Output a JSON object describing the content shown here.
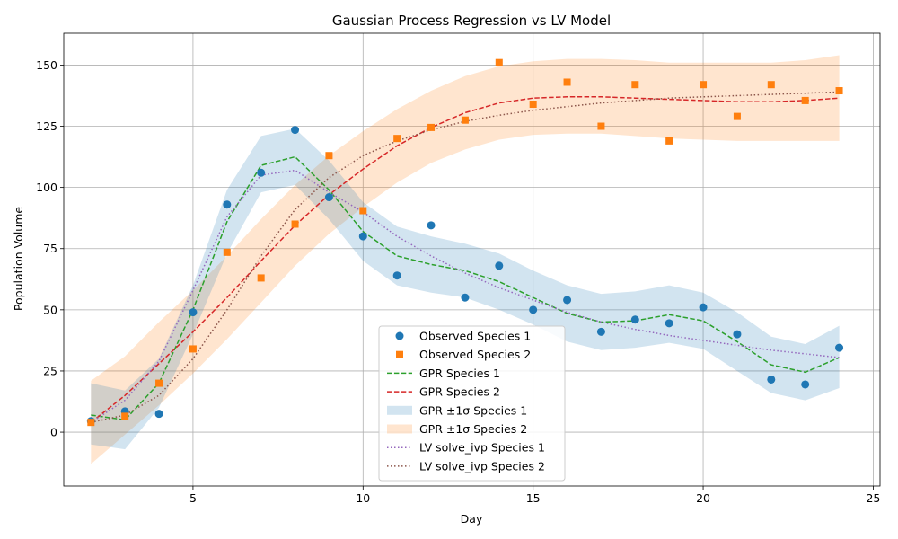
{
  "chart_data": {
    "type": "line",
    "title": "Gaussian Process Regression vs LV Model",
    "xlabel": "Day",
    "ylabel": "Population Volume",
    "xlim": [
      1.2,
      25.2
    ],
    "ylim": [
      -22,
      163
    ],
    "xticks": [
      5,
      10,
      15,
      20,
      25
    ],
    "yticks": [
      0,
      25,
      50,
      75,
      100,
      125,
      150
    ],
    "grid": true,
    "legend_position": "lower-center",
    "x": [
      2,
      3,
      4,
      5,
      6,
      7,
      8,
      9,
      10,
      11,
      12,
      13,
      14,
      15,
      16,
      17,
      18,
      19,
      20,
      21,
      22,
      23,
      24
    ],
    "observed_species_1": {
      "name": "Observed Species 1",
      "color": "#1f77b4",
      "marker": "circle",
      "y": [
        4.5,
        8.5,
        7.5,
        49,
        93,
        106,
        123.5,
        96,
        80,
        64,
        84.5,
        55,
        68,
        50,
        54,
        41,
        46,
        44.5,
        51,
        40,
        21.5,
        19.5,
        34.5
      ]
    },
    "observed_species_2": {
      "name": "Observed Species 2",
      "color": "#ff7f0e",
      "marker": "square",
      "y": [
        4,
        6.5,
        20,
        34,
        73.5,
        63,
        85,
        113,
        90.5,
        120,
        124.5,
        127.5,
        151,
        134,
        143,
        125,
        142,
        119,
        142,
        129,
        142,
        135.5,
        139.5
      ]
    },
    "gpr_species_1": {
      "name": "GPR Species 1",
      "color": "#2ca02c",
      "style": "dashed",
      "y": [
        7,
        5,
        20,
        50,
        86,
        109,
        112.5,
        99,
        82,
        72,
        68.5,
        66,
        61.5,
        55,
        48.5,
        45,
        45.5,
        48,
        45.5,
        37,
        27.5,
        24.5,
        30.5
      ],
      "sigma_label": "GPR ±1σ Species 1",
      "sigma_color": "#1f77b4",
      "lower": [
        -5,
        -7,
        10,
        40,
        73,
        98,
        101,
        87,
        70,
        60,
        57,
        55,
        50,
        44,
        37,
        33.5,
        34.5,
        36.5,
        34,
        25,
        16,
        13,
        18
      ],
      "upper": [
        20,
        17,
        30,
        60,
        99,
        121,
        124,
        111,
        94,
        84,
        80,
        77,
        73,
        66,
        60,
        56.5,
        57.5,
        60,
        57,
        49,
        39,
        36,
        43.5
      ]
    },
    "gpr_species_2": {
      "name": "GPR Species 2",
      "color": "#d62728",
      "style": "dashed",
      "y": [
        4,
        15,
        28,
        41,
        55,
        70,
        84.5,
        97,
        107.5,
        117,
        124.5,
        130.5,
        134.5,
        136.5,
        137,
        137,
        136.5,
        136,
        135.5,
        135,
        135,
        135.5,
        136.5
      ],
      "sigma_label": "GPR ±1σ Species 2",
      "sigma_color": "#ff7f0e",
      "lower": [
        -13,
        -1,
        11,
        24,
        38,
        53,
        68,
        81,
        92,
        102,
        110,
        115.5,
        119.5,
        121.5,
        122,
        122,
        121,
        120,
        119.5,
        119,
        119,
        119,
        119
      ],
      "upper": [
        21,
        31,
        45,
        58,
        72,
        87,
        101,
        113,
        123,
        132,
        139.5,
        145.5,
        149.5,
        151.5,
        152.5,
        152.5,
        152,
        151,
        151,
        151,
        151,
        152,
        154
      ]
    },
    "lv_species_1": {
      "name": "LV solve_ivp Species 1",
      "color": "#9467bd",
      "style": "dotted",
      "y": [
        4,
        13,
        29,
        58,
        88,
        105,
        107,
        98,
        90,
        80,
        72,
        65,
        59,
        54,
        49,
        45,
        42,
        39.5,
        37.5,
        35.5,
        33.5,
        32,
        30.5
      ]
    },
    "lv_species_2": {
      "name": "LV solve_ivp Species 2",
      "color": "#8c564b",
      "style": "dotted",
      "y": [
        4,
        7,
        15,
        30,
        50,
        72,
        91,
        104,
        113,
        119,
        123.5,
        127,
        129.5,
        131.5,
        133,
        134.5,
        135.5,
        136.5,
        137,
        137.5,
        138,
        138.5,
        139
      ]
    },
    "legend_entries": [
      "Observed Species 1",
      "Observed Species 2",
      "GPR Species 1",
      "GPR Species 2",
      "GPR ±1σ Species 1",
      "GPR ±1σ Species 2",
      "LV solve_ivp Species 1",
      "LV solve_ivp Species 2"
    ]
  }
}
